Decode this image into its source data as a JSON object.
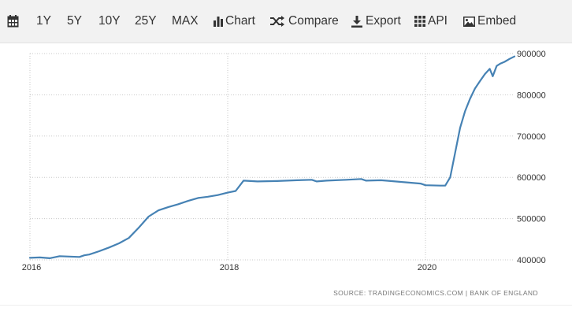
{
  "toolbar": {
    "calendar_icon": "calendar-icon",
    "ranges": [
      "1Y",
      "5Y",
      "10Y",
      "25Y",
      "MAX"
    ],
    "chart_label": "Chart",
    "chart_icon": "bar-chart-icon",
    "compare_label": "Compare",
    "compare_icon": "shuffle-icon",
    "export_label": "Export",
    "export_icon": "download-icon",
    "api_label": "API",
    "api_icon": "grid-icon",
    "embed_label": "Embed",
    "embed_icon": "image-icon"
  },
  "colors": {
    "line": "#4682b4",
    "grid": "#c8c8c8",
    "toolbar_bg": "#f2f2f2"
  },
  "source": "SOURCE: TRADINGECONOMICS.COM  |  BANK OF ENGLAND",
  "chart_data": {
    "type": "line",
    "title": "",
    "xlabel": "",
    "ylabel": "",
    "xlim": [
      2016,
      2020.9
    ],
    "ylim": [
      400000,
      900000
    ],
    "y_ticks": [
      400000,
      500000,
      600000,
      700000,
      800000,
      900000
    ],
    "y_tick_labels": [
      "400000",
      "500000",
      "600000",
      "700000",
      "800000",
      "900000"
    ],
    "x_ticks": [
      2016,
      2018,
      2020
    ],
    "x_tick_labels": [
      "2016",
      "2018",
      "2020"
    ],
    "y_axis_side": "right",
    "grid": true,
    "series": [
      {
        "x": [
          2016.0,
          2016.1,
          2016.2,
          2016.3,
          2016.4,
          2016.5,
          2016.55,
          2016.6,
          2016.7,
          2016.8,
          2016.9,
          2017.0,
          2017.1,
          2017.2,
          2017.3,
          2017.4,
          2017.5,
          2017.6,
          2017.7,
          2017.8,
          2017.9,
          2018.0,
          2018.08,
          2018.16,
          2018.3,
          2018.5,
          2018.7,
          2018.85,
          2018.9,
          2019.0,
          2019.2,
          2019.35,
          2019.4,
          2019.55,
          2019.6,
          2019.8,
          2019.95,
          2020.0,
          2020.15,
          2020.2,
          2020.25,
          2020.3,
          2020.35,
          2020.4,
          2020.45,
          2020.5,
          2020.55,
          2020.6,
          2020.65,
          2020.68,
          2020.72,
          2020.76,
          2020.8,
          2020.85,
          2020.9
        ],
        "y": [
          405000,
          406000,
          404000,
          409000,
          408000,
          407000,
          411000,
          413000,
          421000,
          430000,
          440000,
          453000,
          478000,
          505000,
          520000,
          528000,
          535000,
          543000,
          550000,
          553000,
          557000,
          563000,
          567000,
          592000,
          590000,
          591000,
          593000,
          594000,
          590000,
          592000,
          594000,
          596000,
          592000,
          593000,
          592000,
          588000,
          585000,
          581000,
          580000,
          580000,
          600000,
          660000,
          720000,
          760000,
          790000,
          815000,
          833000,
          850000,
          863000,
          845000,
          870000,
          876000,
          880000,
          887000,
          893000
        ]
      }
    ]
  }
}
